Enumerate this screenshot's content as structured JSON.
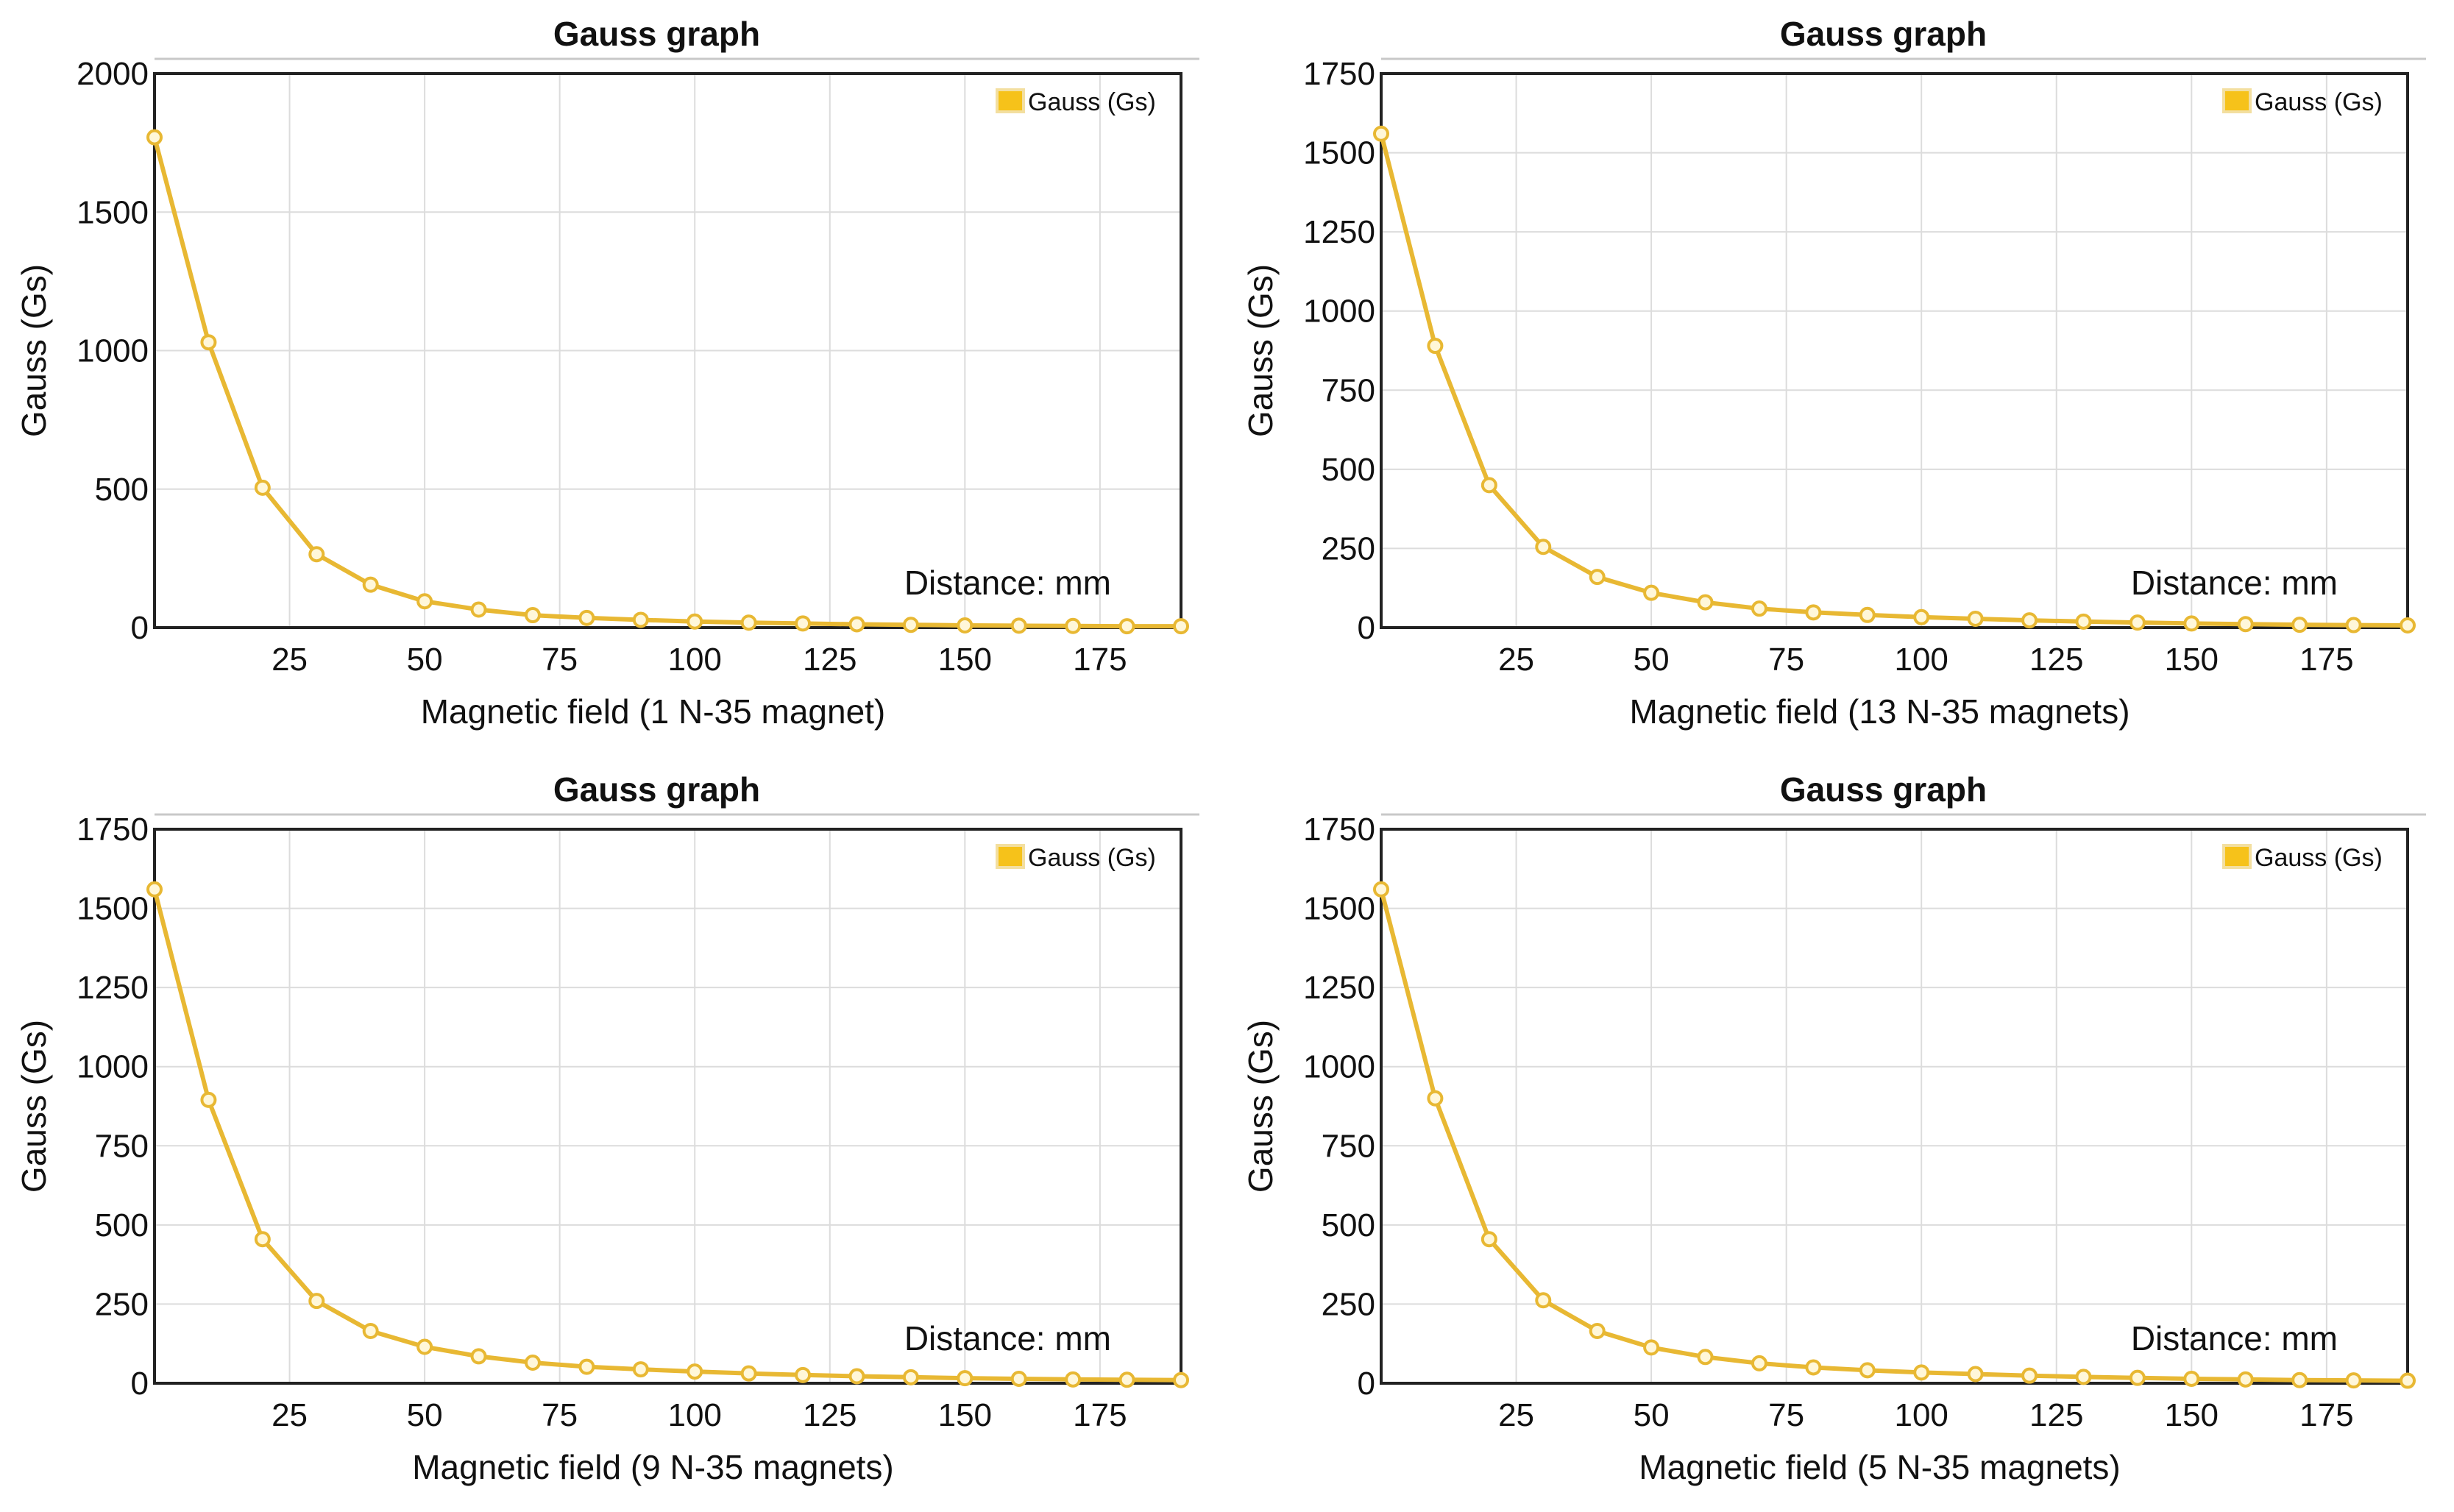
{
  "colors": {
    "series": "#e8b833",
    "series_fill": "#f6c21a",
    "grid": "#dcdcdc",
    "frame": "#222222",
    "text": "#111111",
    "title_rule": "#c8c8c8"
  },
  "chart_data": [
    {
      "type": "line",
      "title": "Gauss graph",
      "xlabel": "Magnetic field (1 N-35 magnet)",
      "ylabel": "Gauss (Gs)",
      "annotation": "Distance: mm",
      "legend": {
        "label": "Gauss (Gs)",
        "position": "top-right"
      },
      "grid": true,
      "xlim": [
        0,
        190
      ],
      "ylim": [
        0,
        2000
      ],
      "xticks": [
        25,
        50,
        75,
        100,
        125,
        150,
        175
      ],
      "yticks": [
        0,
        500,
        1000,
        1500,
        2000
      ],
      "series": [
        {
          "name": "Gauss (Gs)",
          "x": [
            0,
            10,
            20,
            30,
            40,
            50,
            60,
            70,
            80,
            90,
            100,
            110,
            120,
            130,
            140,
            150,
            160,
            170,
            180,
            190
          ],
          "values": [
            1770,
            1030,
            505,
            265,
            155,
            95,
            65,
            45,
            35,
            28,
            22,
            18,
            15,
            12,
            10,
            8,
            7,
            6,
            5,
            5
          ]
        }
      ]
    },
    {
      "type": "line",
      "title": "Gauss graph",
      "xlabel": "Magnetic field (13 N-35 magnets)",
      "ylabel": "Gauss (Gs)",
      "annotation": "Distance: mm",
      "legend": {
        "label": "Gauss (Gs)",
        "position": "top-right"
      },
      "grid": true,
      "xlim": [
        0,
        190
      ],
      "ylim": [
        0,
        1750
      ],
      "xticks": [
        25,
        50,
        75,
        100,
        125,
        150,
        175
      ],
      "yticks": [
        0,
        250,
        500,
        750,
        1000,
        1250,
        1500,
        1750
      ],
      "series": [
        {
          "name": "Gauss (Gs)",
          "x": [
            0,
            10,
            20,
            30,
            40,
            50,
            60,
            70,
            80,
            90,
            100,
            110,
            120,
            130,
            140,
            150,
            160,
            170,
            180,
            190
          ],
          "values": [
            1560,
            890,
            450,
            255,
            160,
            110,
            80,
            60,
            48,
            40,
            33,
            28,
            23,
            19,
            16,
            13,
            11,
            9,
            8,
            7
          ]
        }
      ]
    },
    {
      "type": "line",
      "title": "Gauss graph",
      "xlabel": "Magnetic field (9 N-35 magnets)",
      "ylabel": "Gauss (Gs)",
      "annotation": "Distance: mm",
      "legend": {
        "label": "Gauss (Gs)",
        "position": "top-right"
      },
      "grid": true,
      "xlim": [
        0,
        190
      ],
      "ylim": [
        0,
        1750
      ],
      "xticks": [
        25,
        50,
        75,
        100,
        125,
        150,
        175
      ],
      "yticks": [
        0,
        250,
        500,
        750,
        1000,
        1250,
        1500,
        1750
      ],
      "series": [
        {
          "name": "Gauss (Gs)",
          "x": [
            0,
            10,
            20,
            30,
            40,
            50,
            60,
            70,
            80,
            90,
            100,
            110,
            120,
            130,
            140,
            150,
            160,
            170,
            180,
            190
          ],
          "values": [
            1560,
            895,
            455,
            260,
            165,
            115,
            85,
            65,
            52,
            44,
            37,
            31,
            26,
            22,
            19,
            16,
            14,
            12,
            11,
            10
          ]
        }
      ]
    },
    {
      "type": "line",
      "title": "Gauss graph",
      "xlabel": "Magnetic field (5 N-35 magnets)",
      "ylabel": "Gauss (Gs)",
      "annotation": "Distance: mm",
      "legend": {
        "label": "Gauss (Gs)",
        "position": "top-right"
      },
      "grid": true,
      "xlim": [
        0,
        190
      ],
      "ylim": [
        0,
        1750
      ],
      "xticks": [
        25,
        50,
        75,
        100,
        125,
        150,
        175
      ],
      "yticks": [
        0,
        250,
        500,
        750,
        1000,
        1250,
        1500,
        1750
      ],
      "series": [
        {
          "name": "Gauss (Gs)",
          "x": [
            0,
            10,
            20,
            30,
            40,
            50,
            60,
            70,
            80,
            90,
            100,
            110,
            120,
            130,
            140,
            150,
            160,
            170,
            180,
            190
          ],
          "values": [
            1560,
            900,
            455,
            262,
            165,
            113,
            83,
            63,
            50,
            41,
            34,
            29,
            24,
            20,
            17,
            14,
            12,
            10,
            9,
            8
          ]
        }
      ]
    }
  ]
}
